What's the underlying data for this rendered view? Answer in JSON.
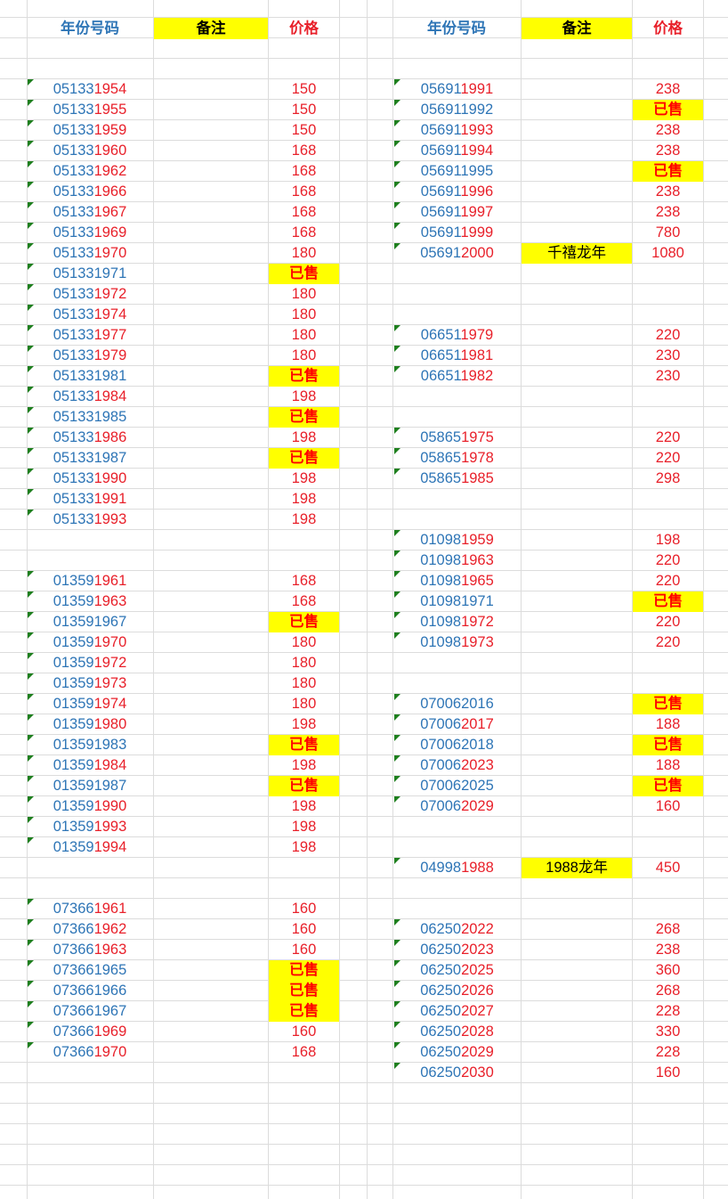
{
  "colors": {
    "blue": "#2e75b6",
    "red": "#e8202a",
    "highlight": "#ffff00",
    "comment_marker": "#1e7f1e"
  },
  "left": {
    "header": {
      "code": "年份号码",
      "note": "备注",
      "price": "价格"
    },
    "rows": [
      {
        "r": 4,
        "p": "05133",
        "y": "1954",
        "price": "150"
      },
      {
        "r": 5,
        "p": "05133",
        "y": "1955",
        "price": "150"
      },
      {
        "r": 6,
        "p": "05133",
        "y": "1959",
        "price": "150"
      },
      {
        "r": 7,
        "p": "05133",
        "y": "1960",
        "price": "168"
      },
      {
        "r": 8,
        "p": "05133",
        "y": "1962",
        "price": "168"
      },
      {
        "r": 9,
        "p": "05133",
        "y": "1966",
        "price": "168"
      },
      {
        "r": 10,
        "p": "05133",
        "y": "1967",
        "price": "168"
      },
      {
        "r": 11,
        "p": "05133",
        "y": "1969",
        "price": "168"
      },
      {
        "r": 12,
        "p": "05133",
        "y": "1970",
        "price": "180"
      },
      {
        "r": 13,
        "p": "05133",
        "y": "1971",
        "price": "已售",
        "sold": true
      },
      {
        "r": 14,
        "p": "05133",
        "y": "1972",
        "price": "180"
      },
      {
        "r": 15,
        "p": "05133",
        "y": "1974",
        "price": "180"
      },
      {
        "r": 16,
        "p": "05133",
        "y": "1977",
        "price": "180"
      },
      {
        "r": 17,
        "p": "05133",
        "y": "1979",
        "price": "180"
      },
      {
        "r": 18,
        "p": "05133",
        "y": "1981",
        "price": "已售",
        "sold": true
      },
      {
        "r": 19,
        "p": "05133",
        "y": "1984",
        "price": "198"
      },
      {
        "r": 20,
        "p": "05133",
        "y": "1985",
        "price": "已售",
        "sold": true
      },
      {
        "r": 21,
        "p": "05133",
        "y": "1986",
        "price": "198"
      },
      {
        "r": 22,
        "p": "05133",
        "y": "1987",
        "price": "已售",
        "sold": true
      },
      {
        "r": 23,
        "p": "05133",
        "y": "1990",
        "price": "198"
      },
      {
        "r": 24,
        "p": "05133",
        "y": "1991",
        "price": "198"
      },
      {
        "r": 25,
        "p": "05133",
        "y": "1993",
        "price": "198"
      },
      {
        "r": 28,
        "p": "01359",
        "y": "1961",
        "price": "168"
      },
      {
        "r": 29,
        "p": "01359",
        "y": "1963",
        "price": "168"
      },
      {
        "r": 30,
        "p": "01359",
        "y": "1967",
        "price": "已售",
        "sold": true
      },
      {
        "r": 31,
        "p": "01359",
        "y": "1970",
        "price": "180"
      },
      {
        "r": 32,
        "p": "01359",
        "y": "1972",
        "price": "180"
      },
      {
        "r": 33,
        "p": "01359",
        "y": "1973",
        "price": "180"
      },
      {
        "r": 34,
        "p": "01359",
        "y": "1974",
        "price": "180"
      },
      {
        "r": 35,
        "p": "01359",
        "y": "1980",
        "price": "198"
      },
      {
        "r": 36,
        "p": "01359",
        "y": "1983",
        "price": "已售",
        "sold": true
      },
      {
        "r": 37,
        "p": "01359",
        "y": "1984",
        "price": "198"
      },
      {
        "r": 38,
        "p": "01359",
        "y": "1987",
        "price": "已售",
        "sold": true
      },
      {
        "r": 39,
        "p": "01359",
        "y": "1990",
        "price": "198"
      },
      {
        "r": 40,
        "p": "01359",
        "y": "1993",
        "price": "198"
      },
      {
        "r": 41,
        "p": "01359",
        "y": "1994",
        "price": "198"
      },
      {
        "r": 44,
        "p": "07366",
        "y": "1961",
        "price": "160"
      },
      {
        "r": 45,
        "p": "07366",
        "y": "1962",
        "price": "160"
      },
      {
        "r": 46,
        "p": "07366",
        "y": "1963",
        "price": "160"
      },
      {
        "r": 47,
        "p": "07366",
        "y": "1965",
        "price": "已售",
        "sold": true
      },
      {
        "r": 48,
        "p": "07366",
        "y": "1966",
        "price": "已售",
        "sold": true
      },
      {
        "r": 49,
        "p": "07366",
        "y": "1967",
        "price": "已售",
        "sold": true
      },
      {
        "r": 50,
        "p": "07366",
        "y": "1969",
        "price": "160"
      },
      {
        "r": 51,
        "p": "07366",
        "y": "1970",
        "price": "168"
      }
    ]
  },
  "right": {
    "header": {
      "code": "年份号码",
      "note": "备注",
      "price": "价格"
    },
    "rows": [
      {
        "r": 4,
        "p": "05691",
        "y": "1991",
        "price": "238"
      },
      {
        "r": 5,
        "p": "05691",
        "y": "1992",
        "price": "已售",
        "sold": true
      },
      {
        "r": 6,
        "p": "05691",
        "y": "1993",
        "price": "238"
      },
      {
        "r": 7,
        "p": "05691",
        "y": "1994",
        "price": "238"
      },
      {
        "r": 8,
        "p": "05691",
        "y": "1995",
        "price": "已售",
        "sold": true
      },
      {
        "r": 9,
        "p": "05691",
        "y": "1996",
        "price": "238"
      },
      {
        "r": 10,
        "p": "05691",
        "y": "1997",
        "price": "238"
      },
      {
        "r": 11,
        "p": "05691",
        "y": "1999",
        "price": "780"
      },
      {
        "r": 12,
        "p": "05691",
        "y": "2000",
        "price": "1080",
        "note": "千禧龙年"
      },
      {
        "r": 16,
        "p": "06651",
        "y": "1979",
        "price": "220"
      },
      {
        "r": 17,
        "p": "06651",
        "y": "1981",
        "price": "230"
      },
      {
        "r": 18,
        "p": "06651",
        "y": "1982",
        "price": "230"
      },
      {
        "r": 21,
        "p": "05865",
        "y": "1975",
        "price": "220"
      },
      {
        "r": 22,
        "p": "05865",
        "y": "1978",
        "price": "220"
      },
      {
        "r": 23,
        "p": "05865",
        "y": "1985",
        "price": "298"
      },
      {
        "r": 26,
        "p": "01098",
        "y": "1959",
        "price": "198"
      },
      {
        "r": 27,
        "p": "01098",
        "y": "1963",
        "price": "220"
      },
      {
        "r": 28,
        "p": "01098",
        "y": "1965",
        "price": "220"
      },
      {
        "r": 29,
        "p": "01098",
        "y": "1971",
        "price": "已售",
        "sold": true
      },
      {
        "r": 30,
        "p": "01098",
        "y": "1972",
        "price": "220"
      },
      {
        "r": 31,
        "p": "01098",
        "y": "1973",
        "price": "220"
      },
      {
        "r": 34,
        "p": "07006",
        "y": "2016",
        "price": "已售",
        "sold": true
      },
      {
        "r": 35,
        "p": "07006",
        "y": "2017",
        "price": "188"
      },
      {
        "r": 36,
        "p": "07006",
        "y": "2018",
        "price": "已售",
        "sold": true
      },
      {
        "r": 37,
        "p": "07006",
        "y": "2023",
        "price": "188"
      },
      {
        "r": 38,
        "p": "07006",
        "y": "2025",
        "price": "已售",
        "sold": true
      },
      {
        "r": 39,
        "p": "07006",
        "y": "2029",
        "price": "160"
      },
      {
        "r": 42,
        "p": "04998",
        "y": "1988",
        "price": "450",
        "note": "1988龙年"
      },
      {
        "r": 45,
        "p": "06250",
        "y": "2022",
        "price": "268"
      },
      {
        "r": 46,
        "p": "06250",
        "y": "2023",
        "price": "238"
      },
      {
        "r": 47,
        "p": "06250",
        "y": "2025",
        "price": "360"
      },
      {
        "r": 48,
        "p": "06250",
        "y": "2026",
        "price": "268"
      },
      {
        "r": 49,
        "p": "06250",
        "y": "2027",
        "price": "228"
      },
      {
        "r": 50,
        "p": "06250",
        "y": "2028",
        "price": "330"
      },
      {
        "r": 51,
        "p": "06250",
        "y": "2029",
        "price": "228"
      },
      {
        "r": 52,
        "p": "06250",
        "y": "2030",
        "price": "160"
      }
    ]
  }
}
